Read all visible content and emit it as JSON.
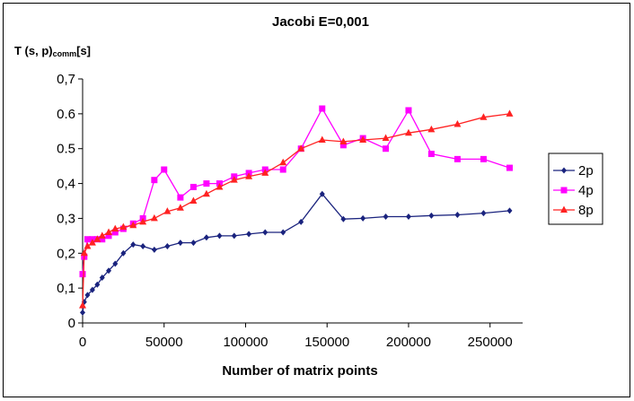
{
  "chart_data": {
    "type": "line",
    "title": "Jacobi E=0,001",
    "ylabel_main": "T (s, p)",
    "ylabel_sub": "comm",
    "ylabel_unit": "[s]",
    "xlabel": "Number of matrix points",
    "xlim": [
      0,
      270000
    ],
    "ylim": [
      0,
      0.7
    ],
    "x_ticks": [
      0,
      50000,
      100000,
      150000,
      200000,
      250000
    ],
    "x_tick_labels": [
      "0",
      "50000",
      "100000",
      "150000",
      "200000",
      "250000"
    ],
    "y_ticks": [
      0,
      0.1,
      0.2,
      0.3,
      0.4,
      0.5,
      0.6,
      0.7
    ],
    "y_tick_labels": [
      "0",
      "0,1",
      "0,2",
      "0,3",
      "0,4",
      "0.5",
      "0.6",
      "0,7"
    ],
    "grid": false,
    "legend_position": "right",
    "series": [
      {
        "name": "2p",
        "color": "#1a237e",
        "marker": "diamond",
        "x": [
          0,
          1000,
          3000,
          6000,
          9000,
          12000,
          16000,
          20000,
          25000,
          31000,
          37000,
          44000,
          52000,
          60000,
          68000,
          76000,
          84000,
          93000,
          102000,
          112000,
          123000,
          134000,
          147000,
          160000,
          172000,
          186000,
          200000,
          214000,
          230000,
          246000,
          262000
        ],
        "y": [
          0.03,
          0.06,
          0.08,
          0.095,
          0.11,
          0.13,
          0.15,
          0.17,
          0.2,
          0.225,
          0.22,
          0.21,
          0.22,
          0.23,
          0.23,
          0.245,
          0.25,
          0.25,
          0.255,
          0.26,
          0.26,
          0.29,
          0.37,
          0.298,
          0.3,
          0.305,
          0.305,
          0.308,
          0.31,
          0.315,
          0.322
        ]
      },
      {
        "name": "4p",
        "color": "#ff00ff",
        "marker": "square",
        "x": [
          0,
          1000,
          3000,
          6000,
          9000,
          12000,
          16000,
          20000,
          25000,
          31000,
          37000,
          44000,
          50000,
          60000,
          68000,
          76000,
          84000,
          93000,
          102000,
          112000,
          123000,
          134000,
          147000,
          160000,
          172000,
          186000,
          200000,
          214000,
          230000,
          246000,
          262000
        ],
        "y": [
          0.14,
          0.19,
          0.24,
          0.24,
          0.24,
          0.24,
          0.25,
          0.26,
          0.27,
          0.285,
          0.3,
          0.41,
          0.44,
          0.36,
          0.39,
          0.4,
          0.4,
          0.42,
          0.43,
          0.44,
          0.44,
          0.5,
          0.615,
          0.51,
          0.53,
          0.5,
          0.61,
          0.485,
          0.47,
          0.47,
          0.445
        ]
      },
      {
        "name": "8p",
        "color": "#ff2222",
        "marker": "triangle",
        "x": [
          0,
          1000,
          3000,
          6000,
          9000,
          12000,
          16000,
          20000,
          25000,
          31000,
          37000,
          44000,
          52000,
          60000,
          68000,
          76000,
          84000,
          93000,
          102000,
          112000,
          123000,
          134000,
          147000,
          160000,
          172000,
          186000,
          200000,
          214000,
          230000,
          246000,
          262000
        ],
        "y": [
          0.05,
          0.2,
          0.22,
          0.23,
          0.24,
          0.25,
          0.26,
          0.27,
          0.275,
          0.28,
          0.29,
          0.3,
          0.32,
          0.33,
          0.35,
          0.37,
          0.39,
          0.41,
          0.42,
          0.43,
          0.46,
          0.5,
          0.525,
          0.52,
          0.525,
          0.53,
          0.545,
          0.555,
          0.57,
          0.59,
          0.6
        ]
      }
    ]
  }
}
